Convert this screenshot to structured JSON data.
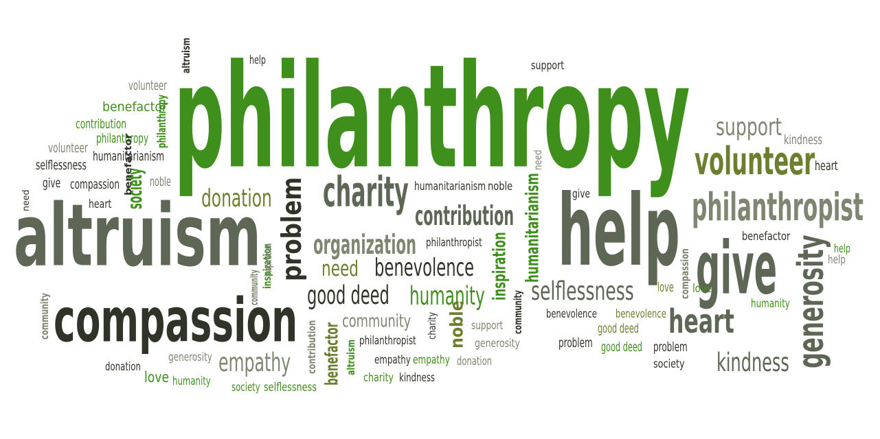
{
  "colors": {
    "background": "#ffffff",
    "green": "#3f8f1c",
    "olive": "#6b7f2e",
    "dark": "#2f3328",
    "gray": "#5e6655",
    "lightgray": "#7e8672"
  },
  "words": [
    {
      "text": "philanthropy",
      "color": "#3f8f1c"
    },
    {
      "text": "altruism",
      "color": "#5e6655"
    },
    {
      "text": "compassion",
      "color": "#2f3328"
    },
    {
      "text": "help",
      "color": "#5e6655"
    },
    {
      "text": "give",
      "color": "#5e6655"
    },
    {
      "text": "philanthropist",
      "color": "#7e8672"
    },
    {
      "text": "volunteer",
      "color": "#6b7f2e"
    },
    {
      "text": "generosity",
      "color": "#5e6655"
    },
    {
      "text": "heart",
      "color": "#5e6655"
    },
    {
      "text": "charity",
      "color": "#5e6655"
    },
    {
      "text": "problem",
      "color": "#2f3328"
    },
    {
      "text": "kindness",
      "color": "#5e6655"
    },
    {
      "text": "support",
      "color": "#7e8672"
    },
    {
      "text": "contribution",
      "color": "#5e6655"
    },
    {
      "text": "organization",
      "color": "#7e8672"
    },
    {
      "text": "donation",
      "color": "#6b7f2e"
    },
    {
      "text": "selflessness",
      "color": "#5e6655"
    },
    {
      "text": "benevolence",
      "color": "#2f3328"
    },
    {
      "text": "humanity",
      "color": "#3f8f1c"
    },
    {
      "text": "good deed",
      "color": "#2f3328"
    },
    {
      "text": "need",
      "color": "#6b7f2e"
    },
    {
      "text": "empathy",
      "color": "#7e8672"
    },
    {
      "text": "community",
      "color": "#7e8672"
    },
    {
      "text": "noble",
      "color": "#6b7f2e"
    },
    {
      "text": "benefactor",
      "color": "#6b7f2e"
    },
    {
      "text": "inspiration",
      "color": "#3f8f1c"
    },
    {
      "text": "humanitarianism",
      "color": "#3f8f1c"
    },
    {
      "text": "society",
      "color": "#3f8f1c"
    },
    {
      "text": "altruism",
      "color": "#2f3328"
    },
    {
      "text": "help",
      "color": "#2f3328"
    },
    {
      "text": "support",
      "color": "#2f3328"
    },
    {
      "text": "volunteer",
      "color": "#7e8672"
    },
    {
      "text": "benefactor",
      "color": "#3f8f1c"
    },
    {
      "text": "contribution",
      "color": "#3f8f1c"
    },
    {
      "text": "philanthropy",
      "color": "#3f8f1c"
    },
    {
      "text": "philanthropy",
      "color": "#3f8f1c"
    },
    {
      "text": "volunteer",
      "color": "#7e8672"
    },
    {
      "text": "humanitarianism",
      "color": "#2f3328"
    },
    {
      "text": "selflessness",
      "color": "#2f3328"
    },
    {
      "text": "give",
      "color": "#2f3328"
    },
    {
      "text": "compassion",
      "color": "#2f3328"
    },
    {
      "text": "noble",
      "color": "#7e8672"
    },
    {
      "text": "need",
      "color": "#2f3328"
    },
    {
      "text": "heart",
      "color": "#2f3328"
    },
    {
      "text": "community",
      "color": "#7e8672"
    },
    {
      "text": "inspiration",
      "color": "#3f8f1c"
    },
    {
      "text": "love",
      "color": "#6b7f2e"
    },
    {
      "text": "kindness",
      "color": "#7e8672"
    },
    {
      "text": "heart",
      "color": "#2f3328"
    },
    {
      "text": "need",
      "color": "#7e8672"
    },
    {
      "text": "give",
      "color": "#2f3328"
    },
    {
      "text": "humanitarianism",
      "color": "#2f3328"
    },
    {
      "text": "noble",
      "color": "#2f3328"
    },
    {
      "text": "philanthropist",
      "color": "#2f3328"
    },
    {
      "text": "benefactor",
      "color": "#2f3328"
    },
    {
      "text": "help",
      "color": "#7e8672"
    },
    {
      "text": "compassion",
      "color": "#7e8672"
    },
    {
      "text": "love",
      "color": "#3f8f1c"
    },
    {
      "text": "humanity",
      "color": "#3f8f1c"
    },
    {
      "text": "benevolence",
      "color": "#2f3328"
    },
    {
      "text": "benevolence",
      "color": "#6b7f2e"
    },
    {
      "text": "good deed",
      "color": "#6b7f2e"
    },
    {
      "text": "good deed",
      "color": "#3f8f1c"
    },
    {
      "text": "problem",
      "color": "#2f3328"
    },
    {
      "text": "problem",
      "color": "#2f3328"
    },
    {
      "text": "society",
      "color": "#2f3328"
    },
    {
      "text": "community",
      "color": "#2f3328"
    },
    {
      "text": "charity",
      "color": "#2f3328"
    },
    {
      "text": "support",
      "color": "#7e8672"
    },
    {
      "text": "generosity",
      "color": "#7e8672"
    },
    {
      "text": "donation",
      "color": "#7e8672"
    },
    {
      "text": "empathy",
      "color": "#2f3328"
    },
    {
      "text": "empathy",
      "color": "#3f8f1c"
    },
    {
      "text": "charity",
      "color": "#3f8f1c"
    },
    {
      "text": "kindness",
      "color": "#2f3328"
    },
    {
      "text": "philanthropist",
      "color": "#2f3328"
    },
    {
      "text": "altruism",
      "color": "#3f8f1c"
    },
    {
      "text": "contribution",
      "color": "#7e8672"
    },
    {
      "text": "community",
      "color": "#7e8672"
    },
    {
      "text": "inspiration",
      "color": "#7e8672"
    },
    {
      "text": "donation",
      "color": "#2f3328"
    },
    {
      "text": "generosity",
      "color": "#7e8672"
    },
    {
      "text": "love",
      "color": "#3f8f1c"
    },
    {
      "text": "humanity",
      "color": "#3f8f1c"
    },
    {
      "text": "society",
      "color": "#3f8f1c"
    },
    {
      "text": "selflessness",
      "color": "#3f8f1c"
    },
    {
      "text": "benefactor",
      "color": "#2f3328"
    },
    {
      "text": "help",
      "color": "#3f8f1c"
    }
  ]
}
